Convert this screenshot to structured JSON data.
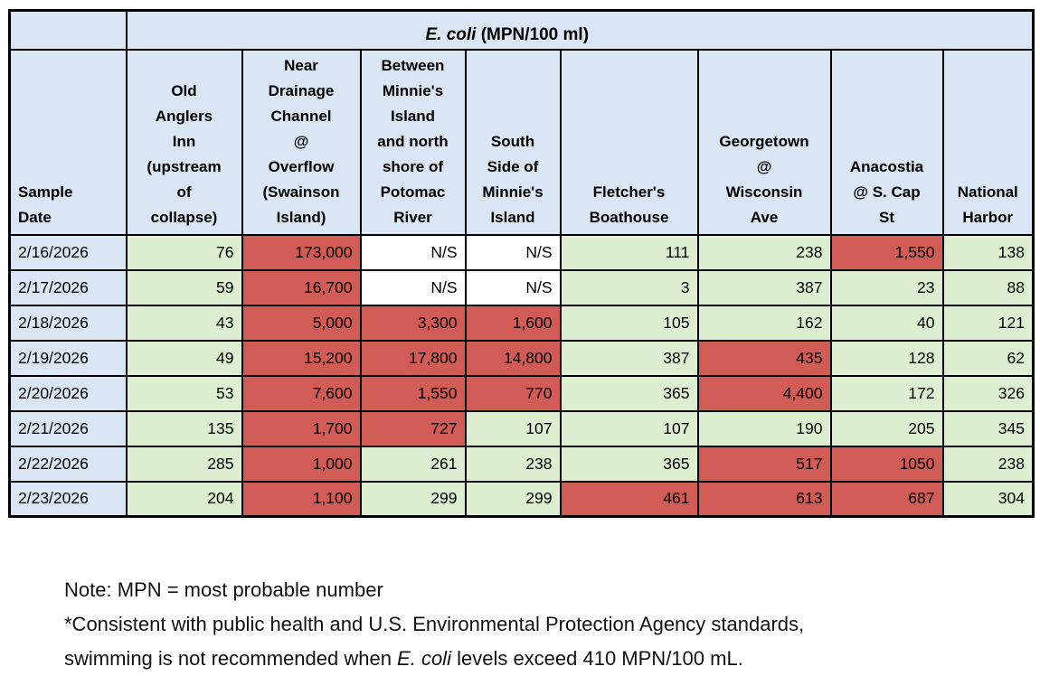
{
  "colors": {
    "header_blue": "#dbe6f4",
    "safe_green": "#ddeed1",
    "high_red": "#d15c55",
    "not_sampled_white": "#ffffff",
    "border_black": "#000000"
  },
  "table": {
    "title_italic": "E. coli",
    "title_unit": " (MPN/100 ml)",
    "corner_label": "",
    "sample_date_header": "Sample\nDate",
    "columns": [
      {
        "label": "Old\nAnglers\nInn\n(upstream\nof\ncollapse)"
      },
      {
        "label": "Near\nDrainage\nChannel\n@\nOverflow\n(Swainson\nIsland)"
      },
      {
        "label": "Between\nMinnie's\nIsland\nand north\nshore of\nPotomac\nRiver"
      },
      {
        "label": "South\nSide of\nMinnie's\nIsland"
      },
      {
        "label": "Fletcher's\nBoathouse"
      },
      {
        "label": "Georgetown\n@\nWisconsin\nAve"
      },
      {
        "label": "Anacostia\n@ S. Cap\nSt"
      },
      {
        "label": "National\nHarbor"
      }
    ],
    "rows": [
      {
        "date": "2/16/2026",
        "cells": [
          {
            "value": "76",
            "status": "safe"
          },
          {
            "value": "173,000",
            "status": "high"
          },
          {
            "value": "N/S",
            "status": "ns"
          },
          {
            "value": "N/S",
            "status": "ns"
          },
          {
            "value": "111",
            "status": "safe"
          },
          {
            "value": "238",
            "status": "safe"
          },
          {
            "value": "1,550",
            "status": "high"
          },
          {
            "value": "138",
            "status": "safe"
          }
        ]
      },
      {
        "date": "2/17/2026",
        "cells": [
          {
            "value": "59",
            "status": "safe"
          },
          {
            "value": "16,700",
            "status": "high"
          },
          {
            "value": "N/S",
            "status": "ns"
          },
          {
            "value": "N/S",
            "status": "ns"
          },
          {
            "value": "3",
            "status": "safe"
          },
          {
            "value": "387",
            "status": "safe"
          },
          {
            "value": "23",
            "status": "safe"
          },
          {
            "value": "88",
            "status": "safe"
          }
        ]
      },
      {
        "date": "2/18/2026",
        "cells": [
          {
            "value": "43",
            "status": "safe"
          },
          {
            "value": "5,000",
            "status": "high"
          },
          {
            "value": "3,300",
            "status": "high"
          },
          {
            "value": "1,600",
            "status": "high"
          },
          {
            "value": "105",
            "status": "safe"
          },
          {
            "value": "162",
            "status": "safe"
          },
          {
            "value": "40",
            "status": "safe"
          },
          {
            "value": "121",
            "status": "safe"
          }
        ]
      },
      {
        "date": "2/19/2026",
        "cells": [
          {
            "value": "49",
            "status": "safe"
          },
          {
            "value": "15,200",
            "status": "high"
          },
          {
            "value": "17,800",
            "status": "high"
          },
          {
            "value": "14,800",
            "status": "high"
          },
          {
            "value": "387",
            "status": "safe"
          },
          {
            "value": "435",
            "status": "high"
          },
          {
            "value": "128",
            "status": "safe"
          },
          {
            "value": "62",
            "status": "safe"
          }
        ]
      },
      {
        "date": "2/20/2026",
        "cells": [
          {
            "value": "53",
            "status": "safe"
          },
          {
            "value": "7,600",
            "status": "high"
          },
          {
            "value": "1,550",
            "status": "high"
          },
          {
            "value": "770",
            "status": "high"
          },
          {
            "value": "365",
            "status": "safe"
          },
          {
            "value": "4,400",
            "status": "high"
          },
          {
            "value": "172",
            "status": "safe"
          },
          {
            "value": "326",
            "status": "safe"
          }
        ]
      },
      {
        "date": "2/21/2026",
        "cells": [
          {
            "value": "135",
            "status": "safe"
          },
          {
            "value": "1,700",
            "status": "high"
          },
          {
            "value": "727",
            "status": "high"
          },
          {
            "value": "107",
            "status": "safe"
          },
          {
            "value": "107",
            "status": "safe"
          },
          {
            "value": "190",
            "status": "safe"
          },
          {
            "value": "205",
            "status": "safe"
          },
          {
            "value": "345",
            "status": "safe"
          }
        ]
      },
      {
        "date": "2/22/2026",
        "cells": [
          {
            "value": "285",
            "status": "safe"
          },
          {
            "value": "1,000",
            "status": "high"
          },
          {
            "value": "261",
            "status": "safe"
          },
          {
            "value": "238",
            "status": "safe"
          },
          {
            "value": "365",
            "status": "safe"
          },
          {
            "value": "517",
            "status": "high"
          },
          {
            "value": "1050",
            "status": "high"
          },
          {
            "value": "238",
            "status": "safe"
          }
        ]
      },
      {
        "date": "2/23/2026",
        "cells": [
          {
            "value": "204",
            "status": "safe"
          },
          {
            "value": "1,100",
            "status": "high"
          },
          {
            "value": "299",
            "status": "safe"
          },
          {
            "value": "299",
            "status": "safe"
          },
          {
            "value": "461",
            "status": "high"
          },
          {
            "value": "613",
            "status": "high"
          },
          {
            "value": "687",
            "status": "high"
          },
          {
            "value": "304",
            "status": "safe"
          }
        ]
      }
    ]
  },
  "notes": {
    "line1": "Note: MPN = most probable number",
    "line2": "*Consistent with public health and U.S. Environmental Protection Agency standards,",
    "line3_prefix": "swimming is not recommended when ",
    "line3_italic": "E. coli",
    "line3_suffix": " levels exceed 410 MPN/100 mL."
  },
  "chart_data": {
    "type": "table",
    "title": "E. coli (MPN/100 ml)",
    "row_header": "Sample Date",
    "columns": [
      "Old Anglers Inn (upstream of collapse)",
      "Near Drainage Channel @ Overflow (Swainson Island)",
      "Between Minnie's Island and north shore of Potomac River",
      "South Side of Minnie's Island",
      "Fletcher's Boathouse",
      "Georgetown @ Wisconsin Ave",
      "Anacostia @ S. Cap St",
      "National Harbor"
    ],
    "dates": [
      "2/16/2026",
      "2/17/2026",
      "2/18/2026",
      "2/19/2026",
      "2/20/2026",
      "2/21/2026",
      "2/22/2026",
      "2/23/2026"
    ],
    "values": [
      [
        76,
        173000,
        null,
        null,
        111,
        238,
        1550,
        138
      ],
      [
        59,
        16700,
        null,
        null,
        3,
        387,
        23,
        88
      ],
      [
        43,
        5000,
        3300,
        1600,
        105,
        162,
        40,
        121
      ],
      [
        49,
        15200,
        17800,
        14800,
        387,
        435,
        128,
        62
      ],
      [
        53,
        7600,
        1550,
        770,
        365,
        4400,
        172,
        326
      ],
      [
        135,
        1700,
        727,
        107,
        107,
        190,
        205,
        345
      ],
      [
        285,
        1000,
        261,
        238,
        365,
        517,
        1050,
        238
      ],
      [
        204,
        1100,
        299,
        299,
        461,
        613,
        687,
        304
      ]
    ],
    "null_display": "N/S",
    "threshold_red_above": 410
  }
}
